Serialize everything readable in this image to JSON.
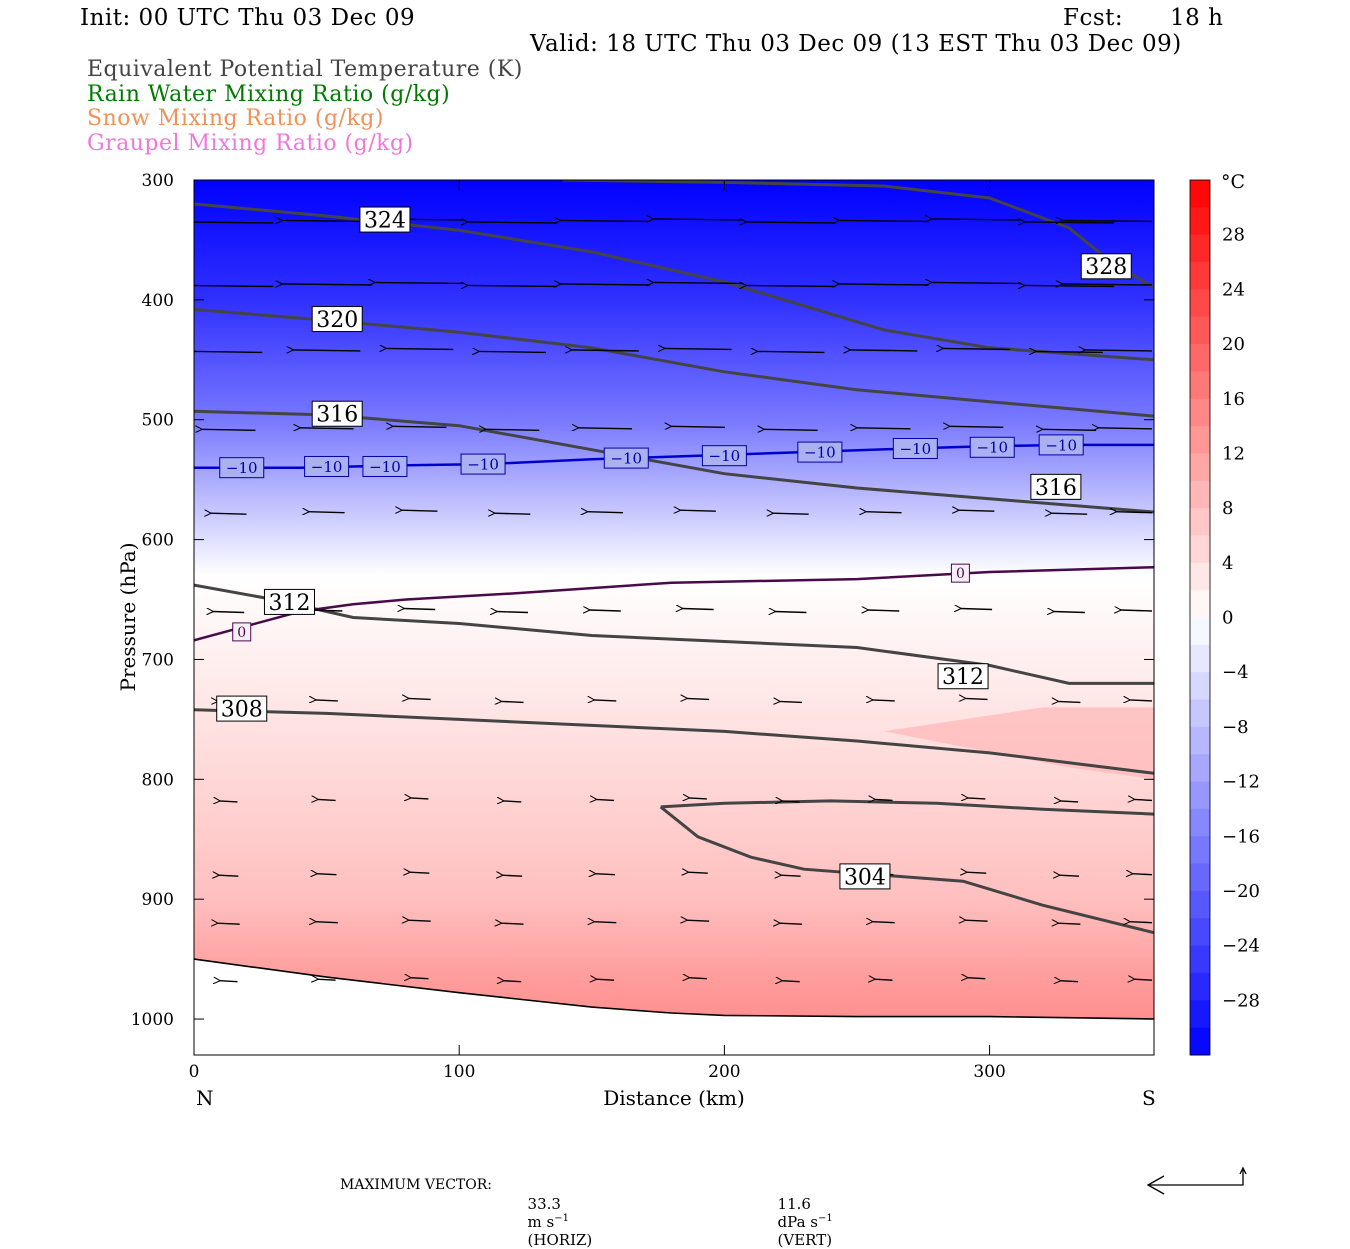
{
  "header": {
    "init": "Init: 00 UTC Thu 03 Dec 09",
    "fcst_label": "Fcst:",
    "fcst_value": "18 h",
    "valid": "Valid: 18 UTC Thu 03 Dec 09 (13 EST Thu 03 Dec 09)"
  },
  "fields": [
    {
      "label": "Equivalent Potential Temperature (K)",
      "color": "#444444"
    },
    {
      "label": "Rain Water Mixing Ratio (g/kg)",
      "color": "#007a00"
    },
    {
      "label": "Snow Mixing Ratio (g/kg)",
      "color": "#f0905a"
    },
    {
      "label": "Graupel Mixing Ratio (g/kg)",
      "color": "#ee77dd"
    }
  ],
  "footer": {
    "prefix": "MAXIMUM VECTOR:",
    "horiz_value": "33.3",
    "horiz_unit": "m s",
    "horiz_exp": "−1",
    "horiz_tag": "(HORIZ)",
    "vert_value": "11.6",
    "vert_unit": "dPa s",
    "vert_exp": "−1",
    "vert_tag": "(VERT)"
  },
  "chart_data": {
    "type": "cross-section",
    "xlabel": "Distance (km)",
    "ylabel": "Pressure (hPa)",
    "xlim": [
      0,
      362
    ],
    "ylim": [
      1030,
      300
    ],
    "x_ticks": [
      0,
      100,
      200,
      300
    ],
    "y_ticks": [
      300,
      400,
      500,
      600,
      700,
      800,
      900,
      1000
    ],
    "end_labels": {
      "left": "N",
      "right": "S"
    },
    "colorbar": {
      "unit": "°C",
      "range": [
        -32,
        32
      ],
      "tick_values": [
        28,
        24,
        20,
        16,
        12,
        8,
        4,
        0,
        -4,
        -8,
        -12,
        -16,
        -20,
        -24,
        -28
      ],
      "tick_labels": [
        "28",
        "24",
        "20",
        "16",
        "12",
        "8",
        "4",
        "0",
        "−4",
        "−8",
        "−12",
        "−16",
        "−20",
        "−24",
        "−28"
      ],
      "cold_color": "#0000ff",
      "warm_color": "#ff0000"
    },
    "temperature_profile": {
      "pressure": [
        300,
        400,
        500,
        600,
        630,
        700,
        800,
        900,
        960,
        1000
      ],
      "temp_c": [
        -32,
        -26,
        -17,
        -4,
        0,
        2,
        5,
        8,
        12,
        14
      ]
    },
    "freezing_line": {
      "label": "0",
      "color": "#4a0a4a",
      "x": [
        0,
        20,
        40,
        60,
        80,
        120,
        180,
        250,
        300,
        362
      ],
      "p": [
        684,
        672,
        660,
        654,
        650,
        645,
        636,
        633,
        627,
        623
      ]
    },
    "minus10_line": {
      "label": "−10",
      "color": "#0000cc",
      "x": [
        0,
        20,
        40,
        60,
        80,
        110,
        150,
        190,
        230,
        270,
        300,
        330,
        362
      ],
      "p": [
        540,
        540,
        540,
        539,
        538,
        537,
        533,
        530,
        527,
        524,
        522,
        521,
        521
      ]
    },
    "theta_e": [
      {
        "value": "328",
        "x": [
          139,
          200,
          260,
          300,
          330,
          345,
          362
        ],
        "p": [
          300,
          302,
          305,
          315,
          340,
          367,
          390
        ]
      },
      {
        "value": "324",
        "x": [
          0,
          50,
          100,
          150,
          200,
          260,
          300,
          362
        ],
        "p": [
          320,
          330,
          342,
          360,
          385,
          425,
          440,
          450
        ]
      },
      {
        "value": "320",
        "x": [
          0,
          50,
          100,
          150,
          200,
          250,
          300,
          362
        ],
        "p": [
          408,
          417,
          427,
          440,
          460,
          475,
          485,
          497
        ]
      },
      {
        "value": "316",
        "x": [
          0,
          50,
          100,
          150,
          200,
          250,
          300,
          362
        ],
        "p": [
          493,
          496,
          505,
          525,
          545,
          557,
          566,
          577
        ]
      },
      {
        "value": "312",
        "x": [
          0,
          30,
          60,
          100,
          150,
          200,
          250,
          300,
          330,
          362
        ],
        "p": [
          638,
          650,
          665,
          670,
          680,
          685,
          690,
          705,
          720,
          720
        ]
      },
      {
        "value": "308",
        "x": [
          0,
          50,
          100,
          150,
          200,
          250,
          300,
          362
        ],
        "p": [
          742,
          745,
          750,
          755,
          760,
          768,
          778,
          795
        ]
      },
      {
        "value": "304",
        "x": [
          176,
          200,
          240,
          280,
          320,
          362
        ],
        "p": [
          823,
          820,
          818,
          820,
          825,
          829
        ]
      },
      {
        "value": "304",
        "x": [
          176,
          190,
          210,
          230,
          260,
          290,
          320,
          362
        ],
        "p": [
          823,
          848,
          865,
          875,
          880,
          885,
          905,
          928
        ]
      }
    ],
    "theta_e_labels": [
      {
        "value": "324",
        "x": 72,
        "p": 333
      },
      {
        "value": "328",
        "x": 344,
        "p": 372
      },
      {
        "value": "320",
        "x": 54,
        "p": 416
      },
      {
        "value": "316",
        "x": 54,
        "p": 495
      },
      {
        "value": "316",
        "x": 325,
        "p": 556
      },
      {
        "value": "312",
        "x": 36,
        "p": 652
      },
      {
        "value": "312",
        "x": 290,
        "p": 714
      },
      {
        "value": "308",
        "x": 18,
        "p": 741
      },
      {
        "value": "304",
        "x": 253,
        "p": 881
      }
    ],
    "freezing_labels": [
      {
        "x": 18,
        "p": 677
      },
      {
        "x": 289,
        "p": 628
      }
    ],
    "minus10_labels": [
      {
        "x": 18,
        "p": 540
      },
      {
        "x": 50,
        "p": 539
      },
      {
        "x": 72,
        "p": 539
      },
      {
        "x": 109,
        "p": 537
      },
      {
        "x": 163,
        "p": 532
      },
      {
        "x": 200,
        "p": 530
      },
      {
        "x": 236,
        "p": 527
      },
      {
        "x": 272,
        "p": 524
      },
      {
        "x": 301,
        "p": 523
      },
      {
        "x": 327,
        "p": 521
      }
    ],
    "terrain": {
      "x": [
        0,
        50,
        100,
        150,
        180,
        200,
        250,
        300,
        362
      ],
      "p": [
        950,
        965,
        978,
        990,
        995,
        997,
        998,
        998,
        1000
      ]
    },
    "wind_vectors": {
      "x": [
        13,
        50,
        85,
        120,
        155,
        190,
        225,
        260,
        295,
        330,
        358
      ],
      "p": [
        335,
        388,
        443,
        508,
        578,
        660,
        735,
        818,
        880,
        920,
        968
      ],
      "u_scale": [
        1.0,
        1.0,
        0.75,
        0.6,
        0.4,
        0.35,
        0.25,
        0.2,
        0.22,
        0.25,
        0.2
      ],
      "max_horiz": 33.3,
      "max_vert": 11.6
    }
  }
}
